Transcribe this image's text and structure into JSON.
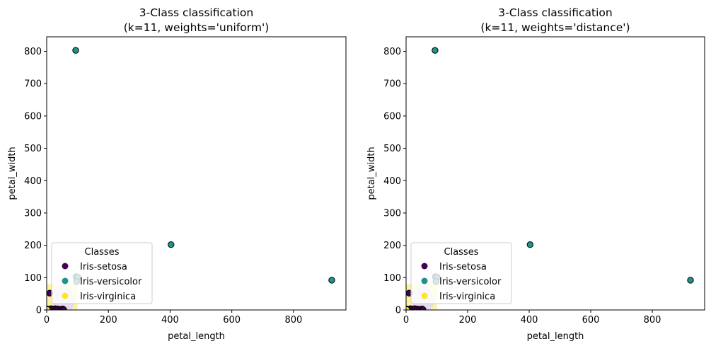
{
  "colors": {
    "setosa": "#440154",
    "versicolor": "#21918c",
    "virginica": "#fde725",
    "region_virginica": "#fdf2a0",
    "region_setosa": "#e2dcef",
    "edge": "#000000"
  },
  "chart_data": [
    {
      "type": "scatter",
      "title": "3-Class classification\n(k=11, weights='uniform')",
      "title_lines": [
        "3-Class classification",
        "(k=11, weights='uniform')"
      ],
      "xlabel": "petal_length",
      "ylabel": "petal_width",
      "xlim": [
        0,
        970
      ],
      "ylim": [
        0,
        845
      ],
      "xticks": [
        0,
        200,
        400,
        600,
        800
      ],
      "yticks": [
        0,
        100,
        200,
        300,
        400,
        500,
        600,
        700,
        800
      ],
      "grid": false,
      "legend": {
        "title": "Classes",
        "placement": "lower-left",
        "entries": [
          "Iris-setosa",
          "Iris-versicolor",
          "Iris-virginica"
        ]
      },
      "series": [
        {
          "name": "Iris-setosa",
          "color": "#440154",
          "points": [
            [
              1,
              1
            ],
            [
              2,
              3
            ],
            [
              5,
              2
            ],
            [
              8,
              1
            ],
            [
              10,
              52
            ],
            [
              14,
              4
            ],
            [
              20,
              3
            ],
            [
              28,
              4
            ],
            [
              36,
              3
            ],
            [
              44,
              2
            ],
            [
              52,
              3
            ],
            [
              55,
              1
            ]
          ]
        },
        {
          "name": "Iris-versicolor",
          "color": "#21918c",
          "points": [
            [
              94,
              803
            ],
            [
              403,
              202
            ],
            [
              924,
              92
            ],
            [
              95,
              103
            ],
            [
              101,
              101
            ],
            [
              97,
              88
            ]
          ]
        },
        {
          "name": "Iris-virginica",
          "color": "#fde725",
          "points": [
            [
              1,
              3
            ],
            [
              2,
              1
            ]
          ]
        }
      ]
    },
    {
      "type": "scatter",
      "title": "3-Class classification\n(k=11, weights='distance')",
      "title_lines": [
        "3-Class classification",
        "(k=11, weights='distance')"
      ],
      "xlabel": "petal_length",
      "ylabel": "petal_width",
      "xlim": [
        0,
        970
      ],
      "ylim": [
        0,
        845
      ],
      "xticks": [
        0,
        200,
        400,
        600,
        800
      ],
      "yticks": [
        0,
        100,
        200,
        300,
        400,
        500,
        600,
        700,
        800
      ],
      "grid": false,
      "legend": {
        "title": "Classes",
        "placement": "lower-left",
        "entries": [
          "Iris-setosa",
          "Iris-versicolor",
          "Iris-virginica"
        ]
      },
      "series": [
        {
          "name": "Iris-setosa",
          "color": "#440154",
          "points": [
            [
              1,
              1
            ],
            [
              2,
              3
            ],
            [
              5,
              2
            ],
            [
              8,
              1
            ],
            [
              10,
              52
            ],
            [
              14,
              4
            ],
            [
              20,
              3
            ],
            [
              28,
              4
            ],
            [
              36,
              3
            ],
            [
              44,
              2
            ],
            [
              52,
              3
            ],
            [
              55,
              1
            ]
          ]
        },
        {
          "name": "Iris-versicolor",
          "color": "#21918c",
          "points": [
            [
              94,
              803
            ],
            [
              403,
              202
            ],
            [
              924,
              92
            ],
            [
              95,
              103
            ],
            [
              101,
              101
            ],
            [
              97,
              88
            ]
          ]
        },
        {
          "name": "Iris-virginica",
          "color": "#fde725",
          "points": [
            [
              1,
              3
            ],
            [
              2,
              1
            ]
          ]
        }
      ]
    }
  ]
}
